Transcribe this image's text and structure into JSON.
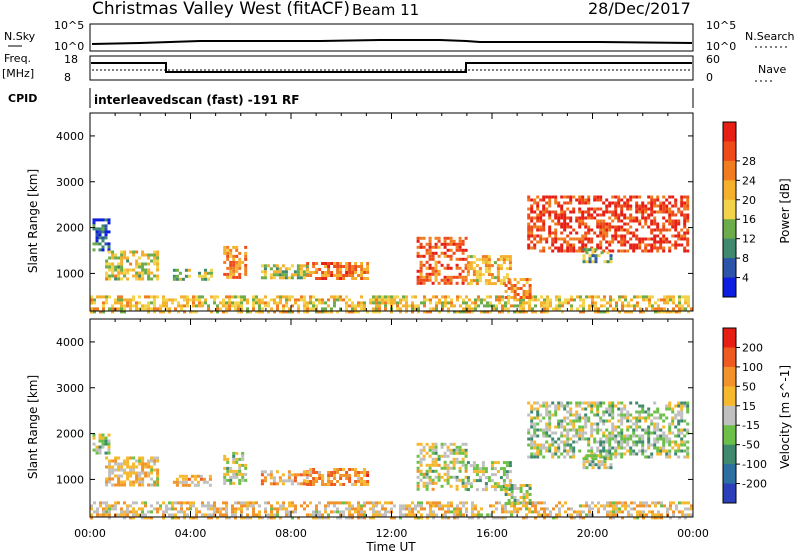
{
  "header": {
    "station": "Christmas Valley West (fitACF)",
    "beam": "Beam 11",
    "date": "28/Dec/2017"
  },
  "aux": {
    "nsky_label": "N.Sky",
    "nsearch_label": "N.Search",
    "noise_ticks": [
      "10^5",
      "10^0"
    ],
    "freq_label": "Freq.",
    "freq_unit": "[MHz]",
    "freq_ticks": [
      "18",
      "8"
    ],
    "nave_label": "Nave",
    "nave_ticks": [
      "60",
      "0"
    ],
    "cpid_label": "CPID",
    "cpid_text": "interleavedscan (fast) -191 RF"
  },
  "chart_data": [
    {
      "type": "heatmap",
      "title": "",
      "xlabel": "Time UT",
      "ylabel": "Slant Range [km]",
      "xlim": [
        0,
        24
      ],
      "ylim": [
        180,
        4500
      ],
      "x_ticks": [
        "00:00",
        "04:00",
        "08:00",
        "12:00",
        "16:00",
        "20:00",
        "00:00"
      ],
      "y_ticks": [
        "1000",
        "2000",
        "3000",
        "4000"
      ],
      "colorbar": {
        "label": "Power [dB]",
        "ticks": [
          "4",
          "8",
          "12",
          "16",
          "20",
          "24",
          "28"
        ],
        "colors": [
          "#0d1ee0",
          "#2c54a8",
          "#3f8a6e",
          "#6cac4a",
          "#f2d34a",
          "#f5b02e",
          "#f17c20",
          "#ee4a1a",
          "#e61e14"
        ]
      },
      "regions": [
        {
          "t0": 0.0,
          "t1": 24.0,
          "r0": 180,
          "r1": 520,
          "level": 0.55
        },
        {
          "t0": 0.1,
          "t1": 0.7,
          "r0": 1500,
          "r1": 2200,
          "level": 0.2
        },
        {
          "t0": 0.6,
          "t1": 2.7,
          "r0": 900,
          "r1": 1500,
          "level": 0.5
        },
        {
          "t0": 3.3,
          "t1": 4.0,
          "r0": 850,
          "r1": 1100,
          "level": 0.4
        },
        {
          "t0": 4.3,
          "t1": 4.8,
          "r0": 850,
          "r1": 1100,
          "level": 0.4
        },
        {
          "t0": 5.3,
          "t1": 6.2,
          "r0": 900,
          "r1": 1600,
          "level": 0.7
        },
        {
          "t0": 6.8,
          "t1": 8.6,
          "r0": 920,
          "r1": 1200,
          "level": 0.45
        },
        {
          "t0": 8.6,
          "t1": 11.1,
          "r0": 900,
          "r1": 1250,
          "level": 0.75
        },
        {
          "t0": 13.0,
          "t1": 15.0,
          "r0": 800,
          "r1": 1800,
          "level": 0.8
        },
        {
          "t0": 15.0,
          "t1": 16.7,
          "r0": 800,
          "r1": 1400,
          "level": 0.6
        },
        {
          "t0": 16.5,
          "t1": 17.5,
          "r0": 500,
          "r1": 900,
          "level": 0.7
        },
        {
          "t0": 17.4,
          "t1": 23.8,
          "r0": 1500,
          "r1": 2700,
          "level": 0.88
        },
        {
          "t0": 19.6,
          "t1": 20.7,
          "r0": 1250,
          "r1": 1550,
          "level": 0.35
        }
      ]
    },
    {
      "type": "heatmap",
      "title": "",
      "xlabel": "Time UT",
      "ylabel": "Slant Range [km]",
      "xlim": [
        0,
        24
      ],
      "ylim": [
        180,
        4500
      ],
      "x_ticks": [
        "00:00",
        "04:00",
        "08:00",
        "12:00",
        "16:00",
        "20:00",
        "00:00"
      ],
      "y_ticks": [
        "1000",
        "2000",
        "3000",
        "4000"
      ],
      "colorbar": {
        "label": "Velocity [m s^-1]",
        "ticks": [
          "200",
          "100",
          "50",
          "15",
          "-15",
          "-50",
          "-100",
          "-200"
        ],
        "colors": [
          "#2a3fb8",
          "#2c6fa0",
          "#3f8a6e",
          "#6cc04a",
          "#c0c0c0",
          "#f5b82e",
          "#f2922a",
          "#ee5a20",
          "#e61e14"
        ]
      },
      "regions": [
        {
          "t0": 0.0,
          "t1": 24.0,
          "r0": 180,
          "r1": 520,
          "level": 0.6
        },
        {
          "t0": 0.1,
          "t1": 0.7,
          "r0": 1600,
          "r1": 2000,
          "level": 0.45
        },
        {
          "t0": 0.6,
          "t1": 2.7,
          "r0": 900,
          "r1": 1500,
          "level": 0.6
        },
        {
          "t0": 3.3,
          "t1": 4.8,
          "r0": 850,
          "r1": 1100,
          "level": 0.62
        },
        {
          "t0": 5.3,
          "t1": 6.2,
          "r0": 900,
          "r1": 1600,
          "level": 0.45
        },
        {
          "t0": 6.8,
          "t1": 8.6,
          "r0": 920,
          "r1": 1200,
          "level": 0.65
        },
        {
          "t0": 8.6,
          "t1": 11.1,
          "r0": 900,
          "r1": 1250,
          "level": 0.72
        },
        {
          "t0": 13.0,
          "t1": 15.0,
          "r0": 800,
          "r1": 1800,
          "level": 0.5
        },
        {
          "t0": 15.0,
          "t1": 16.7,
          "r0": 800,
          "r1": 1400,
          "level": 0.45
        },
        {
          "t0": 16.5,
          "t1": 17.5,
          "r0": 500,
          "r1": 900,
          "level": 0.45
        },
        {
          "t0": 17.4,
          "t1": 23.8,
          "r0": 1500,
          "r1": 2700,
          "level": 0.45
        },
        {
          "t0": 19.6,
          "t1": 20.7,
          "r0": 1250,
          "r1": 1550,
          "level": 0.45
        }
      ]
    }
  ]
}
